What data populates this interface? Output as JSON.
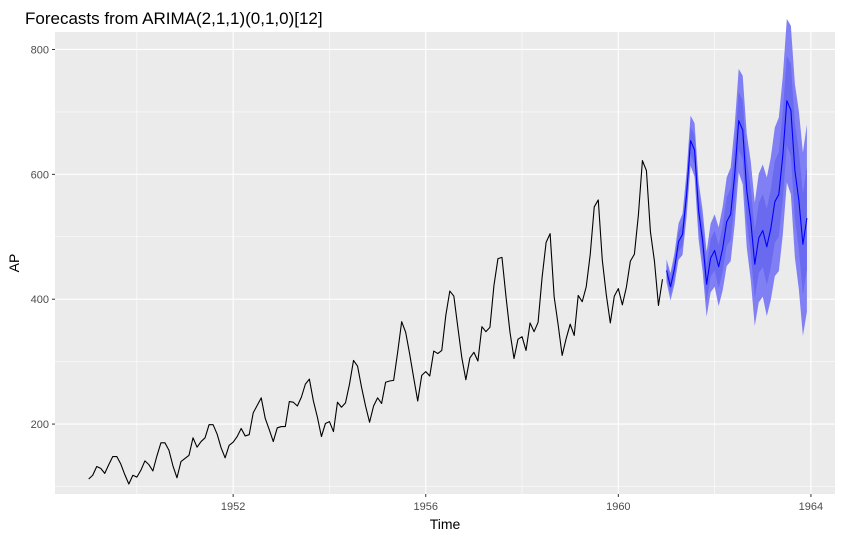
{
  "chart_data": {
    "type": "line",
    "title": "Forecasts from ARIMA(2,1,1)(0,1,0)[12]",
    "xlabel": "Time",
    "ylabel": "AP",
    "xlim": [
      1948.3,
      1964.5
    ],
    "ylim": [
      88,
      828
    ],
    "x_ticks": [
      1952,
      1956,
      1960,
      1964
    ],
    "y_ticks": [
      200,
      400,
      600,
      800
    ],
    "grid": true,
    "observed": {
      "start": 1949.0,
      "frequency": 12,
      "values": [
        112,
        118,
        132,
        129,
        121,
        135,
        148,
        148,
        136,
        119,
        104,
        118,
        115,
        126,
        141,
        135,
        125,
        149,
        170,
        170,
        158,
        133,
        114,
        140,
        145,
        150,
        178,
        163,
        172,
        178,
        199,
        199,
        184,
        162,
        146,
        166,
        171,
        180,
        193,
        181,
        183,
        218,
        230,
        242,
        209,
        191,
        172,
        194,
        196,
        196,
        236,
        235,
        229,
        243,
        264,
        272,
        237,
        211,
        180,
        201,
        204,
        188,
        235,
        227,
        234,
        264,
        302,
        293,
        259,
        229,
        203,
        229,
        242,
        233,
        267,
        269,
        270,
        315,
        364,
        347,
        312,
        274,
        237,
        278,
        284,
        277,
        317,
        313,
        318,
        374,
        413,
        405,
        355,
        306,
        271,
        306,
        315,
        301,
        356,
        348,
        355,
        422,
        465,
        467,
        404,
        347,
        305,
        336,
        340,
        318,
        362,
        348,
        363,
        435,
        491,
        505,
        404,
        359,
        310,
        337,
        360,
        342,
        406,
        396,
        420,
        472,
        548,
        559,
        463,
        407,
        362,
        405,
        417,
        391,
        419,
        461,
        472,
        535,
        622,
        606,
        508,
        461,
        390,
        432
      ]
    },
    "forecast": {
      "start": 1961.0,
      "frequency": 12,
      "mean": [
        446,
        420,
        449,
        492,
        504,
        567,
        654,
        639,
        542,
        494,
        424,
        466,
        478,
        452,
        481,
        524,
        536,
        599,
        686,
        671,
        574,
        526,
        456,
        498,
        510,
        484,
        513,
        556,
        568,
        631,
        718,
        703,
        606,
        558,
        488,
        530
      ],
      "lower": [
        428,
        398,
        424,
        463,
        471,
        531,
        614,
        596,
        496,
        445,
        372,
        411,
        420,
        389,
        414,
        453,
        461,
        520,
        603,
        584,
        483,
        431,
        357,
        395,
        404,
        373,
        399,
        437,
        445,
        504,
        587,
        568,
        467,
        415,
        341,
        380
      ],
      "upper": [
        464,
        442,
        474,
        521,
        537,
        603,
        694,
        682,
        588,
        543,
        476,
        521,
        536,
        515,
        548,
        595,
        611,
        678,
        769,
        758,
        665,
        621,
        555,
        601,
        616,
        595,
        627,
        675,
        691,
        758,
        849,
        838,
        745,
        701,
        635,
        680
      ],
      "band_colors": [
        "#8080f4",
        "#6a6af0"
      ],
      "line_color": "#0000ff"
    },
    "colors": {
      "panel": "#ebebeb",
      "grid_major": "#ffffff",
      "observed_line": "#000000"
    }
  }
}
